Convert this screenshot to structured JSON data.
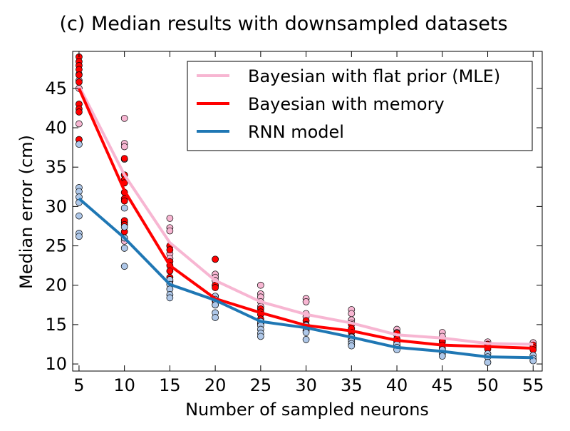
{
  "chart_data": {
    "type": "line",
    "title": "(c)  Median results with downsampled datasets",
    "xlabel": "Number of sampled neurons",
    "ylabel": "Median error (cm)",
    "xlim": [
      4.3,
      56.0
    ],
    "ylim": [
      9.1,
      49.7
    ],
    "xticks": [
      5,
      10,
      15,
      20,
      25,
      30,
      35,
      40,
      45,
      50,
      55
    ],
    "yticks": [
      10,
      15,
      20,
      25,
      30,
      35,
      40,
      45
    ],
    "legend_position": "top-right",
    "grid": false,
    "x": [
      5,
      10,
      15,
      20,
      25,
      30,
      35,
      40,
      45,
      50,
      55
    ],
    "series": [
      {
        "name": "Bayesian with flat prior (MLE)",
        "color": "#f7b6d2",
        "point_color": "#f7b6d2",
        "values": [
          45.3,
          34.0,
          25.4,
          20.6,
          17.9,
          16.3,
          15.2,
          13.7,
          13.3,
          12.6,
          12.5
        ],
        "points": [
          [
            5,
            46.8
          ],
          [
            5,
            46.0
          ],
          [
            5,
            45.0
          ],
          [
            5,
            43.0
          ],
          [
            5,
            40.5
          ],
          [
            5,
            38.5
          ],
          [
            10,
            41.2
          ],
          [
            10,
            38.0
          ],
          [
            10,
            37.6
          ],
          [
            10,
            36.0
          ],
          [
            10,
            34.0
          ],
          [
            10,
            33.0
          ],
          [
            10,
            28.0
          ],
          [
            10,
            26.0
          ],
          [
            10,
            25.6
          ],
          [
            15,
            28.5
          ],
          [
            15,
            27.3
          ],
          [
            15,
            26.9
          ],
          [
            15,
            25.0
          ],
          [
            15,
            24.0
          ],
          [
            15,
            23.4
          ],
          [
            20,
            23.3
          ],
          [
            20,
            21.4
          ],
          [
            20,
            21.0
          ],
          [
            20,
            20.6
          ],
          [
            20,
            19.9
          ],
          [
            25,
            20.0
          ],
          [
            25,
            18.9
          ],
          [
            25,
            18.5
          ],
          [
            25,
            17.9
          ],
          [
            25,
            17.3
          ],
          [
            30,
            18.3
          ],
          [
            30,
            17.9
          ],
          [
            30,
            16.4
          ],
          [
            30,
            16.0
          ],
          [
            35,
            16.9
          ],
          [
            35,
            16.4
          ],
          [
            35,
            15.6
          ],
          [
            35,
            15.2
          ],
          [
            40,
            14.4
          ],
          [
            40,
            14.0
          ],
          [
            40,
            13.7
          ],
          [
            45,
            14.0
          ],
          [
            45,
            13.5
          ],
          [
            45,
            13.0
          ],
          [
            50,
            12.8
          ],
          [
            50,
            12.5
          ],
          [
            55,
            12.7
          ],
          [
            55,
            12.3
          ]
        ]
      },
      {
        "name": "Bayesian with memory",
        "color": "#ff0000",
        "point_color": "#ff0000",
        "values": [
          45.0,
          32.0,
          22.5,
          18.3,
          16.5,
          14.9,
          14.2,
          13.0,
          12.4,
          12.2,
          12.0
        ],
        "points": [
          [
            5,
            49.0
          ],
          [
            5,
            48.4
          ],
          [
            5,
            47.9
          ],
          [
            5,
            47.4
          ],
          [
            5,
            46.7
          ],
          [
            5,
            45.8
          ],
          [
            5,
            43.0
          ],
          [
            5,
            42.4
          ],
          [
            5,
            42.0
          ],
          [
            5,
            38.5
          ],
          [
            10,
            36.1
          ],
          [
            10,
            34.0
          ],
          [
            10,
            33.4
          ],
          [
            10,
            33.0
          ],
          [
            10,
            31.8
          ],
          [
            10,
            31.0
          ],
          [
            10,
            30.7
          ],
          [
            10,
            28.2
          ],
          [
            10,
            27.7
          ],
          [
            10,
            26.8
          ],
          [
            15,
            25.0
          ],
          [
            15,
            24.5
          ],
          [
            15,
            23.0
          ],
          [
            15,
            22.5
          ],
          [
            15,
            21.8
          ],
          [
            15,
            21.0
          ],
          [
            15,
            20.5
          ],
          [
            20,
            23.3
          ],
          [
            20,
            20.0
          ],
          [
            20,
            19.7
          ],
          [
            20,
            18.6
          ],
          [
            20,
            18.0
          ],
          [
            20,
            17.5
          ],
          [
            25,
            17.0
          ],
          [
            25,
            16.6
          ],
          [
            25,
            16.3
          ],
          [
            25,
            15.7
          ],
          [
            25,
            15.1
          ],
          [
            30,
            15.5
          ],
          [
            30,
            15.0
          ],
          [
            30,
            14.6
          ],
          [
            30,
            14.2
          ],
          [
            35,
            15.0
          ],
          [
            35,
            14.5
          ],
          [
            35,
            14.0
          ],
          [
            35,
            13.5
          ],
          [
            35,
            13.1
          ],
          [
            40,
            13.9
          ],
          [
            40,
            13.2
          ],
          [
            40,
            12.8
          ],
          [
            40,
            12.3
          ],
          [
            45,
            12.8
          ],
          [
            45,
            12.4
          ],
          [
            45,
            12.0
          ],
          [
            50,
            12.5
          ],
          [
            50,
            12.1
          ],
          [
            50,
            11.9
          ],
          [
            55,
            12.4
          ],
          [
            55,
            12.1
          ],
          [
            55,
            11.8
          ]
        ]
      },
      {
        "name": "RNN model",
        "color": "#1f77b4",
        "point_color": "#aec7e8",
        "values": [
          31.0,
          26.0,
          20.1,
          18.1,
          15.4,
          14.6,
          13.4,
          12.1,
          11.6,
          10.9,
          10.8
        ],
        "points": [
          [
            5,
            37.9
          ],
          [
            5,
            32.4
          ],
          [
            5,
            31.9
          ],
          [
            5,
            31.2
          ],
          [
            5,
            30.5
          ],
          [
            5,
            28.8
          ],
          [
            5,
            26.6
          ],
          [
            5,
            26.2
          ],
          [
            10,
            29.8
          ],
          [
            10,
            27.4
          ],
          [
            10,
            26.0
          ],
          [
            10,
            24.7
          ],
          [
            10,
            22.4
          ],
          [
            15,
            20.7
          ],
          [
            15,
            20.1
          ],
          [
            15,
            19.5
          ],
          [
            15,
            18.8
          ],
          [
            15,
            18.4
          ],
          [
            20,
            18.6
          ],
          [
            20,
            18.2
          ],
          [
            20,
            17.5
          ],
          [
            20,
            16.5
          ],
          [
            20,
            15.9
          ],
          [
            25,
            15.4
          ],
          [
            25,
            14.9
          ],
          [
            25,
            14.4
          ],
          [
            25,
            13.9
          ],
          [
            25,
            13.5
          ],
          [
            30,
            14.9
          ],
          [
            30,
            14.6
          ],
          [
            30,
            14.0
          ],
          [
            30,
            13.1
          ],
          [
            35,
            13.4
          ],
          [
            35,
            12.9
          ],
          [
            35,
            12.6
          ],
          [
            35,
            12.3
          ],
          [
            40,
            12.5
          ],
          [
            40,
            12.1
          ],
          [
            40,
            11.8
          ],
          [
            45,
            11.8
          ],
          [
            45,
            11.3
          ],
          [
            45,
            11.0
          ],
          [
            50,
            11.3
          ],
          [
            50,
            10.9
          ],
          [
            50,
            10.2
          ],
          [
            55,
            11.1
          ],
          [
            55,
            10.7
          ],
          [
            55,
            10.4
          ]
        ]
      }
    ]
  }
}
